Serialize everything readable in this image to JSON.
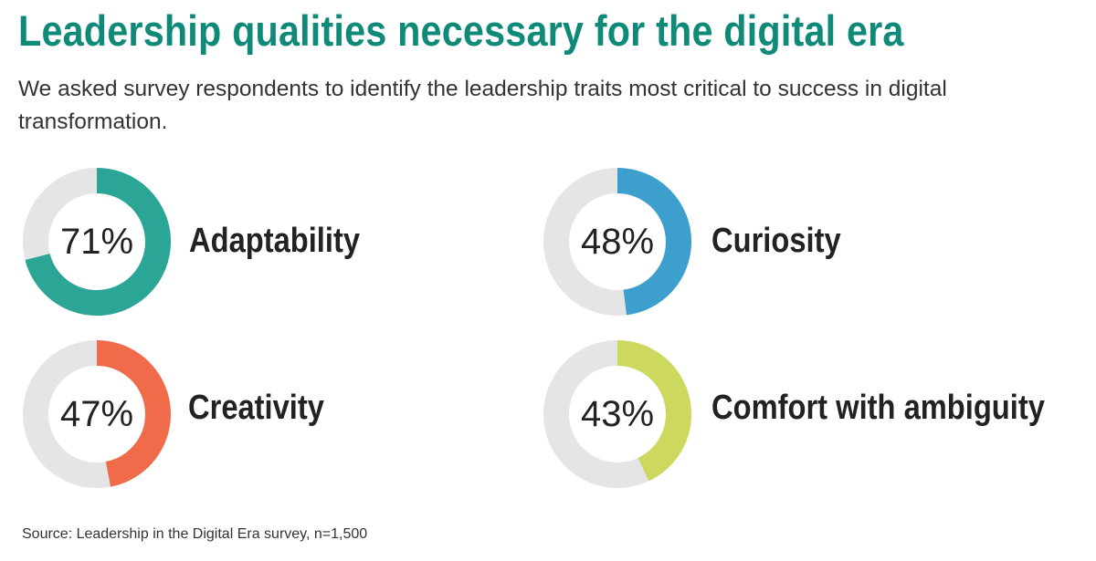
{
  "title": "Leadership qualities necessary for the digital era",
  "subtitle": "We asked survey respondents to identify the leadership traits most critical to success in digital transformation.",
  "source": "Source: Leadership in the Digital Era survey, n=1,500",
  "colors": {
    "title": "#0f8a78",
    "track": "#e5e5e5",
    "adaptability": "#2aa596",
    "curiosity": "#3d9fcd",
    "creativity": "#ef6b4a",
    "comfort_with_ambiguity": "#cdd85f"
  },
  "chart_data": {
    "type": "pie",
    "title": "Leadership qualities necessary for the digital era",
    "subtitle": "We asked survey respondents to identify the leadership traits most critical to success in digital transformation.",
    "unit": "%",
    "items": [
      {
        "name": "Adaptability",
        "value": 71,
        "label": "71%",
        "color": "#2aa596"
      },
      {
        "name": "Curiosity",
        "value": 48,
        "label": "48%",
        "color": "#3d9fcd"
      },
      {
        "name": "Creativity",
        "value": 47,
        "label": "47%",
        "color": "#ef6b4a"
      },
      {
        "name": "Comfort with ambiguity",
        "value": 43,
        "label": "43%",
        "color": "#cdd85f"
      }
    ]
  }
}
